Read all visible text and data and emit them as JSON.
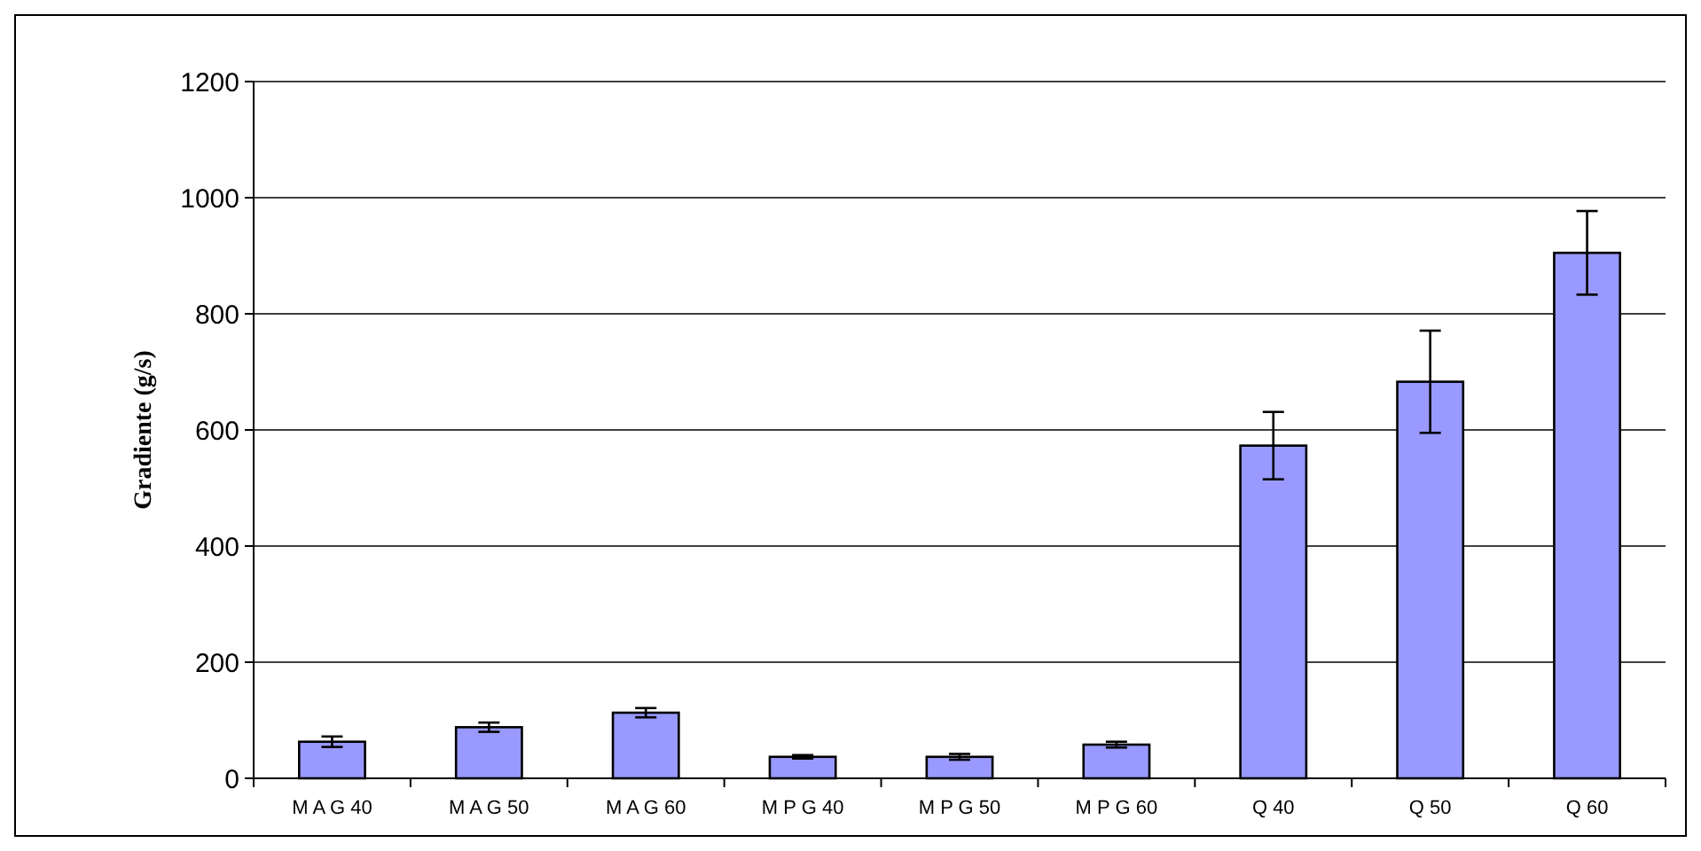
{
  "chart_data": {
    "type": "bar",
    "ylabel": "Gradiente (g/s)",
    "categories": [
      "M A G 40",
      "M A G 50",
      "M A G 60",
      "M P G 40",
      "M P G 50",
      "M P G 60",
      "Q 40",
      "Q 50",
      "Q 60"
    ],
    "values": [
      63,
      88,
      113,
      37,
      37,
      58,
      573,
      683,
      905
    ],
    "errors": [
      9,
      8,
      8,
      3,
      5,
      5,
      58,
      88,
      72
    ],
    "color": "#9999ff",
    "ylim": [
      0,
      1200
    ],
    "yticks": [
      0,
      200,
      400,
      600,
      800,
      1000,
      1200
    ],
    "grid": "y"
  }
}
